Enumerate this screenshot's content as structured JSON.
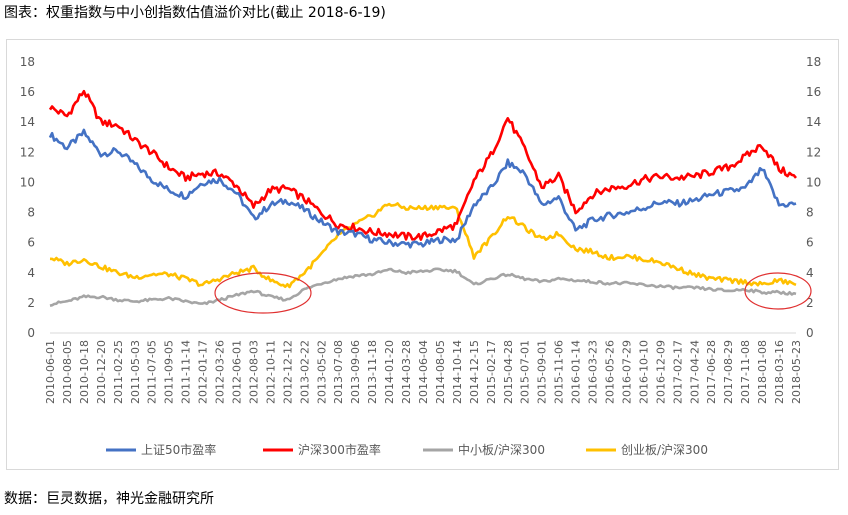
{
  "caption_top": "图表：权重指数与中小创指数估值溢价对比(截止 2018-6-19)",
  "caption_bottom": "数据：巨灵数据，神光金融研究所",
  "colors": {
    "s50": "#4472C4",
    "hs300": "#FF0000",
    "zxb": "#A5A5A5",
    "cyb": "#FFC000",
    "annotation": "#E03030"
  },
  "chart_data": {
    "type": "line",
    "title": "",
    "xlabel": "",
    "ylabel": "",
    "ylim": [
      0,
      18
    ],
    "y2lim": [
      0,
      18
    ],
    "yticks": [
      0,
      2,
      4,
      6,
      8,
      10,
      12,
      14,
      16,
      18
    ],
    "grid": false,
    "legend_position": "bottom",
    "categories": [
      "2010-06-01",
      "2010-08-05",
      "2010-10-18",
      "2010-12-20",
      "2011-02-25",
      "2011-05-03",
      "2011-07-05",
      "2011-09-05",
      "2011-11-14",
      "2012-01-17",
      "2012-03-26",
      "2012-06-01",
      "2012-08-03",
      "2012-10-11",
      "2012-12-12",
      "2013-02-22",
      "2013-05-02",
      "2013-07-08",
      "2013-09-06",
      "2013-11-18",
      "2014-01-20",
      "2014-03-28",
      "2014-06-04",
      "2014-08-05",
      "2014-10-14",
      "2014-12-15",
      "2015-02-17",
      "2015-04-28",
      "2015-07-01",
      "2015-09-01",
      "2015-11-06",
      "2016-01-14",
      "2016-03-23",
      "2016-05-26",
      "2016-07-29",
      "2016-10-10",
      "2016-12-09",
      "2017-02-17",
      "2017-04-24",
      "2017-06-28",
      "2017-08-29",
      "2017-11-08",
      "2018-01-08",
      "2018-03-16",
      "2018-05-23"
    ],
    "series": [
      {
        "name": "上证50市盈率",
        "axis": "left",
        "values": [
          13.2,
          12.3,
          13.3,
          11.9,
          12.1,
          11.2,
          10.2,
          9.5,
          9.1,
          10.0,
          10.2,
          9.3,
          7.6,
          8.5,
          8.8,
          8.2,
          7.4,
          6.7,
          6.6,
          6.2,
          6.0,
          5.9,
          5.9,
          6.2,
          6.2,
          8.5,
          9.6,
          11.3,
          10.6,
          8.5,
          9.0,
          6.8,
          7.5,
          7.8,
          8.0,
          8.3,
          8.7,
          8.6,
          8.8,
          9.2,
          9.4,
          9.6,
          10.9,
          8.5,
          8.6
        ]
      },
      {
        "name": "沪深300市盈率",
        "axis": "left",
        "values": [
          15.0,
          14.4,
          16.1,
          14.0,
          13.8,
          12.8,
          12.0,
          11.0,
          10.3,
          10.6,
          10.6,
          9.8,
          8.4,
          9.5,
          9.6,
          8.9,
          8.0,
          7.2,
          7.0,
          6.7,
          6.6,
          6.4,
          6.4,
          6.8,
          7.2,
          10.1,
          11.8,
          14.3,
          12.2,
          9.7,
          10.4,
          8.1,
          9.2,
          9.6,
          9.8,
          10.2,
          10.4,
          10.3,
          10.4,
          10.7,
          11.0,
          11.7,
          12.5,
          10.9,
          10.3
        ]
      },
      {
        "name": "中小板/沪深300",
        "axis": "right",
        "values": [
          1.9,
          2.1,
          2.4,
          2.4,
          2.2,
          2.1,
          2.2,
          2.3,
          2.1,
          1.9,
          2.2,
          2.5,
          2.8,
          2.4,
          2.2,
          2.9,
          3.3,
          3.6,
          3.8,
          3.9,
          4.2,
          4.0,
          4.1,
          4.2,
          4.1,
          3.2,
          3.6,
          3.9,
          3.6,
          3.4,
          3.6,
          3.5,
          3.4,
          3.3,
          3.3,
          3.2,
          3.1,
          3.0,
          3.0,
          2.9,
          2.8,
          2.9,
          2.7,
          2.7,
          2.6
        ]
      },
      {
        "name": "创业板/沪深300",
        "axis": "right",
        "values": [
          5.0,
          4.6,
          4.9,
          4.4,
          4.0,
          3.7,
          3.9,
          3.9,
          3.6,
          3.2,
          3.6,
          4.0,
          4.3,
          3.5,
          3.1,
          4.0,
          5.2,
          6.5,
          7.2,
          7.8,
          8.6,
          8.3,
          8.3,
          8.4,
          8.2,
          5.1,
          6.3,
          7.8,
          7.0,
          6.2,
          6.6,
          5.6,
          5.4,
          5.0,
          5.1,
          4.9,
          4.7,
          4.3,
          3.9,
          3.6,
          3.5,
          3.4,
          3.2,
          3.5,
          3.2
        ]
      }
    ]
  }
}
